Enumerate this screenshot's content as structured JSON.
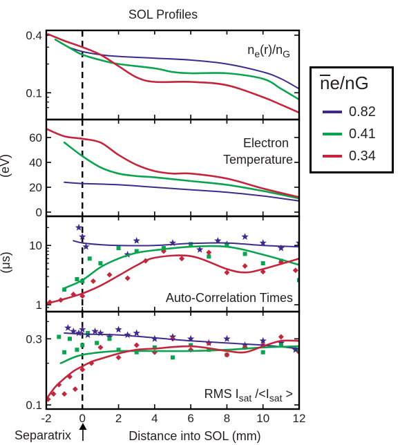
{
  "figure": {
    "title": "SOL Profiles",
    "xlabel": "Distance into SOL (mm)",
    "separatrix_label": "Separatrix",
    "xticks": [
      "-2",
      "0",
      "2",
      "4",
      "6",
      "8",
      "10",
      "12"
    ]
  },
  "legend": {
    "title": "n̄e/nG",
    "entries": [
      {
        "label": "0.82",
        "color": "#3f2a8a"
      },
      {
        "label": "0.41",
        "color": "#0aa34f"
      },
      {
        "label": "0.34",
        "color": "#c4243c"
      }
    ]
  },
  "colors": {
    "blue": "#3f2a8a",
    "green": "#0aa34f",
    "red": "#c4243c"
  },
  "chart_data": [
    {
      "type": "line",
      "panel": "density",
      "annotation": "ne(r)/nG",
      "ylabel": "",
      "yscale": "log",
      "ylim": [
        0.062,
        0.42
      ],
      "xlim": [
        -2,
        12
      ],
      "yticks": [
        "0.4",
        "0.1"
      ],
      "series": [
        {
          "name": "0.82",
          "x": [
            -0.8,
            0,
            1,
            2,
            4,
            6,
            8,
            10,
            11,
            12
          ],
          "y": [
            0.3,
            0.27,
            0.25,
            0.24,
            0.23,
            0.22,
            0.2,
            0.165,
            0.14,
            0.11
          ]
        },
        {
          "name": "0.41",
          "x": [
            -1.5,
            -0.5,
            0,
            1,
            2,
            4,
            5,
            6,
            8,
            10,
            11,
            12
          ],
          "y": [
            0.36,
            0.28,
            0.25,
            0.22,
            0.2,
            0.18,
            0.165,
            0.16,
            0.16,
            0.14,
            0.11,
            0.085
          ]
        },
        {
          "name": "0.34",
          "x": [
            -1.9,
            -1,
            0,
            1,
            2,
            3,
            4,
            6,
            8,
            10,
            11,
            12
          ],
          "y": [
            0.41,
            0.35,
            0.3,
            0.25,
            0.19,
            0.145,
            0.13,
            0.13,
            0.12,
            0.09,
            0.075,
            0.062
          ]
        }
      ]
    },
    {
      "type": "line",
      "panel": "temperature",
      "annotation_lines": [
        "Electron",
        "Temperature"
      ],
      "ylabel": "(eV)",
      "ylim": [
        0,
        70
      ],
      "xlim": [
        -2,
        12
      ],
      "yticks": [
        "60",
        "40",
        "20",
        "0"
      ],
      "series": [
        {
          "name": "0.82",
          "x": [
            -1,
            0,
            2,
            4,
            6,
            8,
            10,
            12
          ],
          "y": [
            24,
            23,
            22,
            20,
            18,
            16,
            13,
            9
          ]
        },
        {
          "name": "0.41",
          "x": [
            -1,
            0,
            1,
            2,
            3,
            4,
            6,
            8,
            10,
            12
          ],
          "y": [
            56,
            45,
            36,
            31,
            29,
            28,
            25,
            22,
            17,
            11
          ]
        },
        {
          "name": "0.34",
          "x": [
            -2,
            -1,
            0,
            1,
            2,
            3,
            4,
            5,
            6,
            8,
            10,
            12
          ],
          "y": [
            67,
            61,
            59,
            56,
            46,
            38,
            33,
            31,
            31,
            27,
            19,
            12
          ]
        }
      ]
    },
    {
      "type": "line",
      "panel": "autocorrelation",
      "annotation": "Auto-Correlation Times",
      "ylabel": "(μs)",
      "yscale": "log",
      "ylim": [
        0.9,
        25
      ],
      "xlim": [
        -2,
        12
      ],
      "yticks": [
        "10",
        "1"
      ],
      "series": [
        {
          "name": "0.82",
          "x": [
            -0.5,
            0,
            1,
            2,
            4,
            6,
            8,
            10,
            12
          ],
          "y": [
            12,
            11,
            10.3,
            10,
            10,
            10.8,
            11,
            10,
            9.5
          ]
        },
        {
          "name": "0.41",
          "x": [
            -1,
            0,
            1,
            2,
            3,
            4,
            6,
            8,
            10,
            12
          ],
          "y": [
            1.9,
            2.6,
            4.3,
            6,
            7.5,
            8.3,
            9.5,
            9.5,
            7,
            4.7
          ]
        },
        {
          "name": "0.34",
          "x": [
            -2,
            -1,
            0,
            1,
            2,
            3,
            4,
            6,
            8,
            9,
            10,
            12
          ],
          "y": [
            1.05,
            1.25,
            1.55,
            2.1,
            3.1,
            4.6,
            6.2,
            6.6,
            4,
            3.5,
            4,
            6
          ]
        }
      ],
      "scatter": [
        {
          "name": "0.82",
          "marker": "star",
          "x": [
            -0.2,
            0,
            0.2,
            2.5,
            3,
            5,
            6.5,
            7.5,
            8,
            9,
            10,
            11,
            12
          ],
          "y": [
            20,
            14,
            9.5,
            7,
            12,
            11,
            8.5,
            12,
            10.5,
            14,
            11,
            9,
            11
          ]
        },
        {
          "name": "0.41",
          "marker": "square",
          "x": [
            -1,
            -0.3,
            0,
            0.4,
            1,
            2,
            3,
            4.5,
            6,
            7,
            8,
            9,
            10,
            11,
            12
          ],
          "y": [
            1.8,
            2.7,
            2.5,
            6,
            5,
            9,
            8,
            9,
            10.5,
            6.5,
            10,
            7.2,
            5,
            5.5,
            2.6
          ]
        },
        {
          "name": "0.34",
          "marker": "diamond",
          "x": [
            -1.8,
            -1.2,
            -0.5,
            0,
            0.6,
            1.5,
            2.5,
            3.5,
            4.5,
            5.5,
            7,
            8,
            9,
            10,
            11,
            11.8
          ],
          "y": [
            1.1,
            1.2,
            1.5,
            1.4,
            2.5,
            3.2,
            2.8,
            5.5,
            8,
            6,
            7.6,
            3.5,
            4.5,
            3.6,
            5.2,
            3.8
          ]
        }
      ]
    },
    {
      "type": "line",
      "panel": "rms",
      "annotation": "RMS Isat /<Isat >",
      "ylabel": "",
      "yscale": "log",
      "ylim": [
        0.1,
        0.44
      ],
      "xlim": [
        -2,
        12
      ],
      "yticks": [
        "0.3",
        "0.1"
      ],
      "series": [
        {
          "name": "0.82",
          "x": [
            -1,
            0,
            2,
            4,
            6,
            8,
            10,
            12
          ],
          "y": [
            0.33,
            0.325,
            0.32,
            0.305,
            0.29,
            0.28,
            0.27,
            0.255
          ]
        },
        {
          "name": "0.41",
          "x": [
            -1.2,
            -0.5,
            0,
            1,
            2,
            3,
            4,
            6,
            8,
            10,
            12
          ],
          "y": [
            0.2,
            0.22,
            0.23,
            0.24,
            0.245,
            0.245,
            0.245,
            0.245,
            0.25,
            0.26,
            0.265
          ]
        },
        {
          "name": "0.34",
          "x": [
            -2,
            -1.5,
            -1,
            -0.5,
            0,
            0.5,
            1,
            2,
            3,
            4,
            6,
            8,
            9,
            10,
            11,
            12
          ],
          "y": [
            0.11,
            0.135,
            0.155,
            0.175,
            0.19,
            0.205,
            0.215,
            0.235,
            0.25,
            0.255,
            0.265,
            0.245,
            0.24,
            0.265,
            0.29,
            0.29
          ]
        }
      ],
      "scatter": [
        {
          "name": "0.82",
          "marker": "star",
          "x": [
            -0.8,
            -0.5,
            -0.2,
            0,
            0.3,
            0.7,
            1,
            1.5,
            2,
            2.5,
            3,
            4,
            5,
            6,
            7,
            8,
            9,
            10,
            11,
            11.8
          ],
          "y": [
            0.36,
            0.34,
            0.33,
            0.35,
            0.32,
            0.34,
            0.33,
            0.31,
            0.35,
            0.32,
            0.33,
            0.3,
            0.31,
            0.3,
            0.28,
            0.3,
            0.27,
            0.29,
            0.28,
            0.25
          ]
        },
        {
          "name": "0.41",
          "marker": "square",
          "x": [
            -1.3,
            -1,
            -0.7,
            -0.3,
            0,
            0.3,
            0.8,
            1.5,
            2,
            3,
            4,
            5,
            6,
            7,
            8,
            9,
            10,
            11,
            12
          ],
          "y": [
            0.31,
            0.24,
            0.3,
            0.25,
            0.27,
            0.33,
            0.28,
            0.3,
            0.25,
            0.24,
            0.26,
            0.22,
            0.27,
            0.25,
            0.23,
            0.26,
            0.24,
            0.27,
            0.25
          ]
        },
        {
          "name": "0.34",
          "marker": "diamond",
          "x": [
            -1.9,
            -1.6,
            -1.3,
            -1,
            -0.7,
            -0.4,
            0,
            0.5,
            1,
            2,
            3,
            4,
            5,
            6,
            7,
            8,
            9,
            10,
            11,
            12
          ],
          "y": [
            0.11,
            0.12,
            0.14,
            0.12,
            0.16,
            0.13,
            0.18,
            0.2,
            0.26,
            0.22,
            0.27,
            0.24,
            0.3,
            0.25,
            0.28,
            0.23,
            0.26,
            0.27,
            0.31,
            0.24
          ]
        }
      ]
    }
  ]
}
